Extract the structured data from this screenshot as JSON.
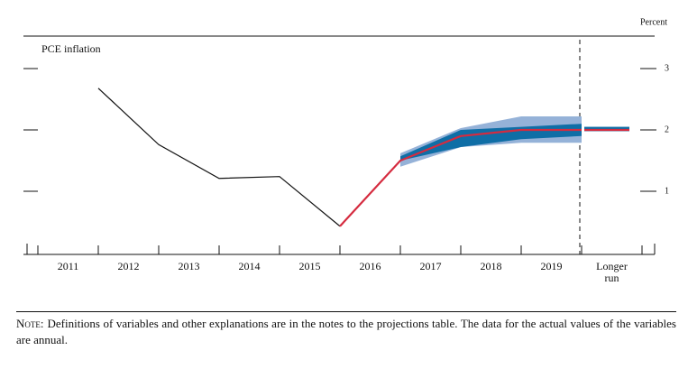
{
  "chart_data": {
    "type": "line",
    "title": "PCE inflation",
    "y_axis_label": "Percent",
    "categories": [
      "2011",
      "2012",
      "2013",
      "2014",
      "2015",
      "2016",
      "2017",
      "2018",
      "2019",
      "Longer run"
    ],
    "actual": {
      "color": "#111111",
      "values": [
        2.68,
        1.76,
        1.21,
        1.24,
        0.43,
        null,
        null,
        null,
        null,
        null
      ]
    },
    "median": {
      "color": "#d52b3f",
      "values": [
        null,
        null,
        null,
        null,
        0.43,
        1.5,
        1.9,
        2.0,
        2.0,
        2.0
      ]
    },
    "central_tendency": {
      "color": "#0f6ea6",
      "low": [
        null,
        null,
        null,
        null,
        null,
        1.5,
        1.72,
        1.85,
        1.9,
        1.98
      ],
      "high": [
        null,
        null,
        null,
        null,
        null,
        1.57,
        2.0,
        2.05,
        2.1,
        2.05
      ]
    },
    "range": {
      "color": "#95b2d8",
      "low": [
        null,
        null,
        null,
        null,
        null,
        1.4,
        1.72,
        1.79,
        1.79,
        1.98
      ],
      "high": [
        null,
        null,
        null,
        null,
        null,
        1.62,
        2.03,
        2.22,
        2.22,
        2.05
      ]
    },
    "ylim": [
      0,
      3.5
    ],
    "yticks": [
      1,
      2,
      3
    ],
    "note_label": "Note:",
    "note": "Definitions of variables and other explanations are in the notes to the projections table. The data for the actual values of the variables are annual."
  }
}
